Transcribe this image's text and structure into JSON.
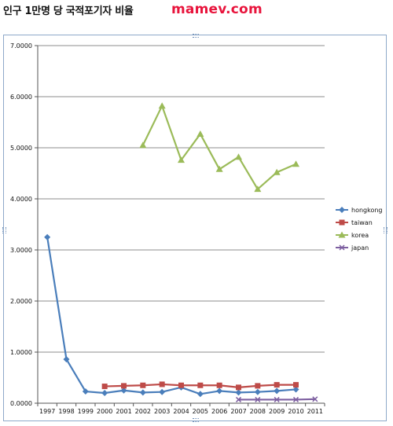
{
  "header": {
    "title": "인구 1만명 당 국적포기자 비율",
    "watermark": "mamev.com"
  },
  "colors": {
    "hongkong": "#4a7ebb",
    "taiwan": "#be4b48",
    "korea": "#9bbb59",
    "japan": "#7d5fa0",
    "grid": "#8c8c8c"
  },
  "chart_data": {
    "type": "line",
    "title": "",
    "xlabel": "",
    "ylabel": "",
    "categories": [
      "1997",
      "1998",
      "1999",
      "2000",
      "2001",
      "2002",
      "2003",
      "2004",
      "2005",
      "2006",
      "2007",
      "2008",
      "2009",
      "2010",
      "2011"
    ],
    "y_ticks": [
      "0.0000",
      "1.0000",
      "2.0000",
      "3.0000",
      "4.0000",
      "5.0000",
      "6.0000",
      "7.0000"
    ],
    "ylim": [
      0,
      7
    ],
    "grid": true,
    "legend_position": "right",
    "series": [
      {
        "name": "hongkong",
        "marker": "diamond",
        "values": [
          3.25,
          0.86,
          0.23,
          0.2,
          0.25,
          0.21,
          0.22,
          0.31,
          0.18,
          0.24,
          0.21,
          0.22,
          0.24,
          0.27,
          null
        ]
      },
      {
        "name": "taiwan",
        "marker": "square",
        "values": [
          null,
          null,
          null,
          0.33,
          0.34,
          0.35,
          0.37,
          0.35,
          0.35,
          0.35,
          0.31,
          0.34,
          0.36,
          0.36,
          null
        ]
      },
      {
        "name": "korea",
        "marker": "triangle",
        "values": [
          null,
          null,
          null,
          null,
          null,
          5.05,
          5.82,
          4.76,
          5.27,
          4.58,
          4.82,
          4.19,
          4.52,
          4.68,
          null
        ]
      },
      {
        "name": "japan",
        "marker": "x",
        "values": [
          null,
          null,
          null,
          null,
          null,
          null,
          null,
          null,
          null,
          null,
          0.07,
          0.07,
          0.07,
          0.07,
          0.08
        ]
      }
    ]
  }
}
